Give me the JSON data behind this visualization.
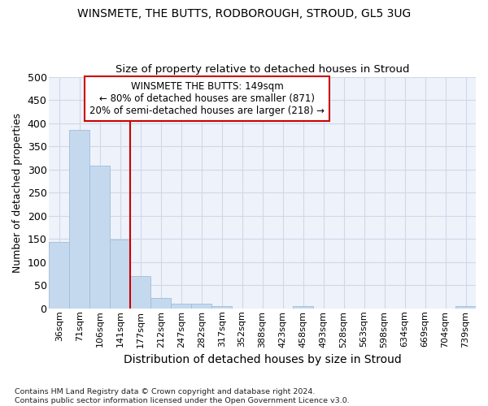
{
  "title": "WINSMETE, THE BUTTS, RODBOROUGH, STROUD, GL5 3UG",
  "subtitle": "Size of property relative to detached houses in Stroud",
  "xlabel": "Distribution of detached houses by size in Stroud",
  "ylabel": "Number of detached properties",
  "bar_color": "#c5d9ee",
  "bar_edge_color": "#a0bcd8",
  "background_color": "#eef2fb",
  "grid_color": "#d0d8e8",
  "categories": [
    "36sqm",
    "71sqm",
    "106sqm",
    "141sqm",
    "177sqm",
    "212sqm",
    "247sqm",
    "282sqm",
    "317sqm",
    "352sqm",
    "388sqm",
    "423sqm",
    "458sqm",
    "493sqm",
    "528sqm",
    "563sqm",
    "598sqm",
    "634sqm",
    "669sqm",
    "704sqm",
    "739sqm"
  ],
  "values": [
    143,
    385,
    308,
    149,
    70,
    23,
    10,
    10,
    5,
    0,
    0,
    0,
    5,
    0,
    0,
    0,
    0,
    0,
    0,
    0,
    5
  ],
  "vline_x": 3.5,
  "vline_color": "#cc0000",
  "property_size": "149sqm",
  "property_name": "WINSMETE THE BUTTS",
  "pct_smaller": 80,
  "n_smaller": 871,
  "pct_larger_semi": 20,
  "n_larger_semi": 218,
  "annotation_box_color": "#cc0000",
  "ylim": [
    0,
    500
  ],
  "yticks": [
    0,
    50,
    100,
    150,
    200,
    250,
    300,
    350,
    400,
    450,
    500
  ],
  "footer": "Contains HM Land Registry data © Crown copyright and database right 2024.\nContains public sector information licensed under the Open Government Licence v3.0."
}
